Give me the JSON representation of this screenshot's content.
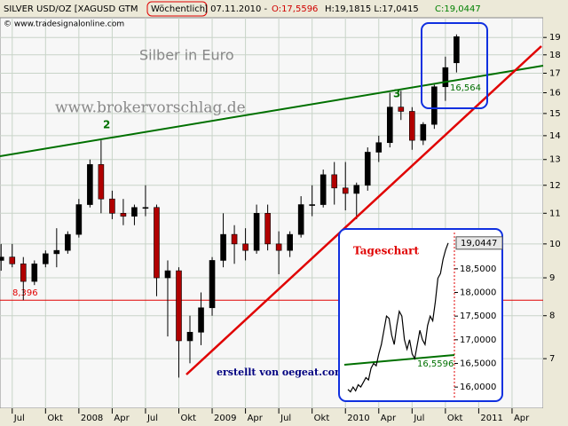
{
  "header": {
    "symbol": "SILVER USD/OZ [XAGUSD GTM",
    "interval": "Wöchentlich",
    "date": "] 07.11.2010 -",
    "open": "O:17,5596",
    "highlow": "H:19,1815 L:17,0415",
    "close": "C:19,0447",
    "copyright": "© www.tradesignalonline.com"
  },
  "chart_data": [
    {
      "type": "candlestick",
      "log_scale": true,
      "grid": true,
      "up_color": "#000000",
      "down_color": "#b00000",
      "x": [
        0,
        1,
        2,
        3,
        4,
        5,
        6,
        7,
        8,
        9,
        10,
        11,
        12,
        13,
        14,
        15,
        16,
        17,
        18,
        19,
        20,
        21,
        22,
        23,
        24,
        25,
        26,
        27,
        28,
        29,
        30,
        31,
        32,
        33,
        34,
        35,
        36,
        37,
        38,
        39,
        40,
        41
      ],
      "open": [
        9.5,
        9.6,
        9.4,
        8.9,
        9.4,
        9.7,
        9.8,
        10.3,
        11.3,
        12.8,
        11.5,
        11.0,
        10.9,
        11.2,
        11.2,
        9.0,
        9.2,
        7.4,
        7.6,
        8.2,
        9.5,
        10.3,
        10.0,
        9.8,
        11.0,
        10.0,
        9.8,
        10.3,
        11.3,
        11.3,
        12.4,
        11.9,
        11.7,
        12.0,
        13.3,
        13.7,
        15.3,
        15.1,
        13.8,
        14.5,
        16.3,
        17.5596
      ],
      "high": [
        10.0,
        10.0,
        9.6,
        9.5,
        9.8,
        10.5,
        10.4,
        11.5,
        13.0,
        13.8,
        11.8,
        11.5,
        11.3,
        12.0,
        11.3,
        9.5,
        9.3,
        8.0,
        8.6,
        9.6,
        11.0,
        10.6,
        10.5,
        11.3,
        11.3,
        10.4,
        10.4,
        11.6,
        12.0,
        12.6,
        12.9,
        12.9,
        12.1,
        13.5,
        14.0,
        16.0,
        16.1,
        15.3,
        14.6,
        16.4,
        17.9,
        19.1815
      ],
      "low": [
        9.2,
        9.3,
        8.396,
        8.8,
        9.3,
        9.3,
        9.7,
        10.2,
        11.2,
        11.0,
        10.8,
        10.6,
        10.6,
        10.9,
        8.5,
        7.5,
        6.6,
        6.9,
        7.3,
        8.0,
        9.3,
        9.4,
        9.5,
        9.7,
        9.8,
        9.1,
        9.6,
        10.2,
        10.9,
        11.2,
        11.3,
        11.1,
        10.8,
        11.8,
        12.9,
        13.5,
        14.7,
        13.4,
        13.6,
        14.3,
        15.6,
        17.0415
      ],
      "close": [
        9.6,
        9.4,
        8.9,
        9.4,
        9.7,
        9.8,
        10.3,
        11.3,
        12.8,
        11.5,
        11.0,
        10.9,
        11.2,
        11.2,
        9.0,
        9.2,
        7.4,
        7.6,
        8.2,
        9.5,
        10.3,
        10.0,
        9.8,
        11.0,
        10.0,
        9.8,
        10.3,
        11.3,
        11.3,
        12.4,
        11.9,
        11.7,
        12.0,
        13.3,
        13.7,
        15.3,
        15.1,
        13.8,
        14.5,
        16.3,
        17.3,
        19.0447
      ],
      "xlim": [
        -0.1,
        48.8
      ],
      "xticks": [
        {
          "value": 1,
          "label": "Jul"
        },
        {
          "value": 4,
          "label": "Okt"
        },
        {
          "value": 7,
          "label": "2008"
        },
        {
          "value": 10,
          "label": "Apr"
        },
        {
          "value": 13,
          "label": "Jul"
        },
        {
          "value": 16,
          "label": "Okt"
        },
        {
          "value": 19,
          "label": "2009"
        },
        {
          "value": 22,
          "label": "Apr"
        },
        {
          "value": 25,
          "label": "Jul"
        },
        {
          "value": 28,
          "label": "Okt"
        },
        {
          "value": 31,
          "label": "2010"
        },
        {
          "value": 34,
          "label": "Apr"
        },
        {
          "value": 37,
          "label": "Jul"
        },
        {
          "value": 40,
          "label": "Okt"
        },
        {
          "value": 43,
          "label": "2011"
        },
        {
          "value": 46,
          "label": "Apr"
        }
      ],
      "ylim": [
        6,
        20.2
      ],
      "yticks": [
        7,
        8,
        9,
        10,
        11,
        12,
        13,
        14,
        15,
        16,
        17,
        18,
        19
      ],
      "hline": {
        "value": 8.396,
        "label": "8,396",
        "color": "#e00000"
      },
      "annotations": [
        {
          "text": "Silber in Euro"
        },
        {
          "text": "www.brokervorschlag.de"
        },
        {
          "text": "2"
        },
        {
          "text": "3"
        },
        {
          "text": "16,564"
        },
        {
          "text": "erstellt von oegeat.com"
        }
      ]
    },
    {
      "type": "line",
      "title": "Tageschart",
      "color": "#000000",
      "values": [
        15.95,
        15.9,
        16.0,
        15.92,
        16.05,
        16.0,
        16.1,
        16.2,
        16.15,
        16.4,
        16.5,
        16.45,
        16.7,
        16.9,
        17.2,
        17.5,
        17.45,
        17.1,
        16.9,
        17.3,
        17.6,
        17.5,
        17.0,
        16.8,
        17.0,
        16.7,
        16.6,
        16.9,
        17.2,
        17.0,
        16.9,
        17.3,
        17.5,
        17.4,
        17.8,
        18.3,
        18.4,
        18.7,
        18.9,
        19.0447
      ],
      "ylim": [
        15.74,
        19.21
      ],
      "yticks": [
        {
          "value": 16,
          "label": "16,0000"
        },
        {
          "value": 16.5,
          "label": "16,5000"
        },
        {
          "value": 17,
          "label": "17,0000"
        },
        {
          "value": 17.5,
          "label": "17,5000"
        },
        {
          "value": 18,
          "label": "18,0000"
        },
        {
          "value": 18.5,
          "label": "18,5000"
        }
      ],
      "last_label": "19,0447",
      "annotations": [
        {
          "text": "16,5596"
        }
      ]
    }
  ]
}
